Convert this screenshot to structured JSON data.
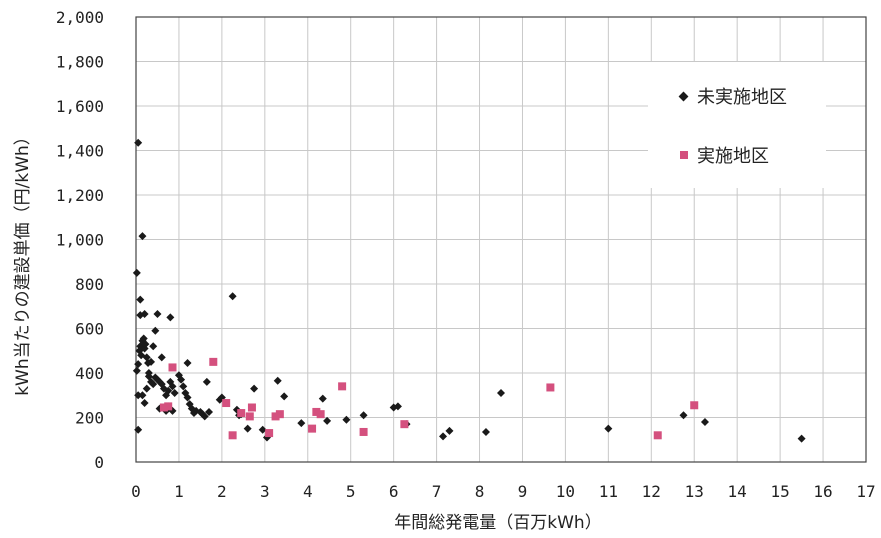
{
  "chart_data": {
    "type": "scatter",
    "xlabel": "年間総発電量（百万kWh）",
    "ylabel": "kWh当たりの建設単価（円/kWh）",
    "xlim": [
      0,
      17
    ],
    "ylim": [
      0,
      2000
    ],
    "x_ticks": [
      0,
      1,
      2,
      3,
      4,
      5,
      6,
      7,
      8,
      9,
      10,
      11,
      12,
      13,
      14,
      15,
      16,
      17
    ],
    "y_ticks": [
      0,
      200,
      400,
      600,
      800,
      1000,
      1200,
      1400,
      1600,
      1800,
      2000
    ],
    "y_tick_labels": [
      "0",
      "200",
      "400",
      "600",
      "800",
      "1,000",
      "1,200",
      "1,400",
      "1,600",
      "1,800",
      "2,000"
    ],
    "grid": true,
    "legend_position": "right",
    "series": [
      {
        "name": "未実施地区",
        "marker": "diamond",
        "color": "#1a1a1a",
        "points": [
          [
            0.02,
            850
          ],
          [
            0.05,
            1435
          ],
          [
            0.15,
            1015
          ],
          [
            0.1,
            730
          ],
          [
            0.2,
            665
          ],
          [
            0.1,
            660
          ],
          [
            0.05,
            145
          ],
          [
            0.05,
            300
          ],
          [
            0.02,
            410
          ],
          [
            0.05,
            440
          ],
          [
            0.08,
            500
          ],
          [
            0.1,
            520
          ],
          [
            0.12,
            480
          ],
          [
            0.15,
            545
          ],
          [
            0.18,
            555
          ],
          [
            0.2,
            510
          ],
          [
            0.22,
            530
          ],
          [
            0.25,
            470
          ],
          [
            0.28,
            445
          ],
          [
            0.3,
            400
          ],
          [
            0.3,
            385
          ],
          [
            0.35,
            360
          ],
          [
            0.4,
            350
          ],
          [
            0.45,
            380
          ],
          [
            0.5,
            370
          ],
          [
            0.55,
            360
          ],
          [
            0.6,
            350
          ],
          [
            0.65,
            330
          ],
          [
            0.7,
            300
          ],
          [
            0.75,
            320
          ],
          [
            0.8,
            360
          ],
          [
            0.85,
            340
          ],
          [
            0.9,
            310
          ],
          [
            0.15,
            300
          ],
          [
            0.25,
            330
          ],
          [
            0.2,
            265
          ],
          [
            0.4,
            520
          ],
          [
            0.45,
            590
          ],
          [
            0.5,
            665
          ],
          [
            0.8,
            650
          ],
          [
            0.6,
            470
          ],
          [
            0.35,
            450
          ],
          [
            0.55,
            240
          ],
          [
            0.7,
            230
          ],
          [
            0.75,
            250
          ],
          [
            0.85,
            230
          ],
          [
            1.0,
            390
          ],
          [
            1.05,
            370
          ],
          [
            1.1,
            340
          ],
          [
            1.15,
            310
          ],
          [
            1.2,
            290
          ],
          [
            1.2,
            445
          ],
          [
            1.25,
            260
          ],
          [
            1.3,
            240
          ],
          [
            1.35,
            220
          ],
          [
            1.4,
            230
          ],
          [
            1.5,
            225
          ],
          [
            1.55,
            215
          ],
          [
            1.6,
            205
          ],
          [
            1.65,
            360
          ],
          [
            1.7,
            225
          ],
          [
            1.95,
            280
          ],
          [
            2.0,
            290
          ],
          [
            2.25,
            745
          ],
          [
            2.35,
            235
          ],
          [
            2.4,
            210
          ],
          [
            2.45,
            215
          ],
          [
            2.6,
            150
          ],
          [
            2.75,
            330
          ],
          [
            2.95,
            145
          ],
          [
            3.05,
            110
          ],
          [
            3.3,
            365
          ],
          [
            3.45,
            295
          ],
          [
            3.85,
            175
          ],
          [
            4.35,
            285
          ],
          [
            4.45,
            185
          ],
          [
            4.9,
            190
          ],
          [
            5.3,
            210
          ],
          [
            6.0,
            245
          ],
          [
            6.1,
            250
          ],
          [
            6.3,
            170
          ],
          [
            7.15,
            115
          ],
          [
            7.3,
            140
          ],
          [
            8.15,
            135
          ],
          [
            8.5,
            310
          ],
          [
            11.0,
            150
          ],
          [
            12.75,
            210
          ],
          [
            13.25,
            180
          ],
          [
            15.5,
            105
          ]
        ]
      },
      {
        "name": "実施地区",
        "marker": "square",
        "color": "#d4507e",
        "points": [
          [
            0.65,
            245
          ],
          [
            0.75,
            250
          ],
          [
            0.85,
            425
          ],
          [
            1.8,
            450
          ],
          [
            2.1,
            265
          ],
          [
            2.25,
            120
          ],
          [
            2.45,
            220
          ],
          [
            2.65,
            205
          ],
          [
            2.7,
            245
          ],
          [
            3.1,
            130
          ],
          [
            3.25,
            205
          ],
          [
            3.35,
            215
          ],
          [
            4.1,
            150
          ],
          [
            4.2,
            225
          ],
          [
            4.3,
            215
          ],
          [
            4.8,
            340
          ],
          [
            5.3,
            135
          ],
          [
            6.25,
            170
          ],
          [
            9.65,
            335
          ],
          [
            12.15,
            120
          ],
          [
            13.0,
            255
          ]
        ]
      }
    ]
  }
}
